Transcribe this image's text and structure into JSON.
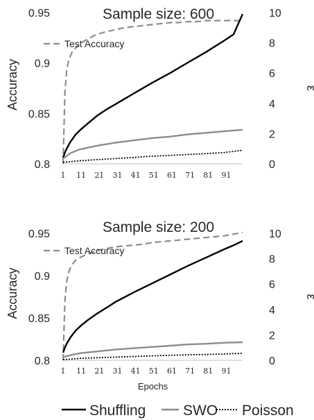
{
  "chart_data": [
    {
      "type": "line",
      "title": "Sample size: 600",
      "xlabel": "",
      "ylabel": "Accuracy",
      "y2label": "ε",
      "x_ticks": [
        1,
        11,
        21,
        31,
        41,
        51,
        61,
        71,
        81,
        91
      ],
      "xlim": [
        1,
        100
      ],
      "ylim": [
        0.8,
        0.95
      ],
      "y_ticks": [
        0.8,
        0.85,
        0.9,
        0.95
      ],
      "y2lim": [
        0,
        10
      ],
      "y2_ticks": [
        0,
        2,
        4,
        6,
        8,
        10
      ],
      "grid": false,
      "annotation": "Test Accuracy",
      "accuracy_series": {
        "name": "Test Accuracy",
        "axis": "left",
        "style": "dashed",
        "color": "#8c8c8c",
        "x": [
          1,
          2,
          3,
          4,
          5,
          6,
          7,
          8,
          10,
          12,
          15,
          18,
          21,
          25,
          30,
          35,
          40,
          45,
          50,
          55,
          60,
          65,
          70,
          75,
          80,
          85,
          90,
          95,
          100
        ],
        "y": [
          0.8,
          0.87,
          0.893,
          0.902,
          0.907,
          0.911,
          0.913,
          0.915,
          0.918,
          0.921,
          0.924,
          0.927,
          0.929,
          0.931,
          0.933,
          0.935,
          0.936,
          0.937,
          0.938,
          0.939,
          0.94,
          0.94,
          0.941,
          0.941,
          0.942,
          0.942,
          0.942,
          0.942,
          0.942
        ]
      },
      "series": [
        {
          "name": "Shuffling",
          "axis": "right",
          "style": "solid",
          "color": "#000000",
          "x": [
            1,
            2,
            3,
            5,
            8,
            11,
            15,
            20,
            25,
            30,
            40,
            50,
            60,
            70,
            80,
            90,
            95,
            100
          ],
          "y": [
            0.4,
            0.75,
            1.0,
            1.45,
            1.95,
            2.3,
            2.7,
            3.2,
            3.6,
            3.95,
            4.65,
            5.35,
            6.0,
            6.7,
            7.4,
            8.15,
            8.55,
            9.9
          ]
        },
        {
          "name": "SWO",
          "axis": "right",
          "style": "solid",
          "color": "#8c8c8c",
          "x": [
            1,
            5,
            10,
            20,
            30,
            40,
            50,
            60,
            70,
            80,
            90,
            100
          ],
          "y": [
            0.35,
            0.7,
            0.95,
            1.2,
            1.4,
            1.55,
            1.7,
            1.8,
            1.95,
            2.05,
            2.15,
            2.25
          ]
        },
        {
          "name": "Poisson",
          "axis": "right",
          "style": "dotted",
          "color": "#000000",
          "x": [
            1,
            10,
            20,
            30,
            40,
            50,
            60,
            70,
            80,
            90,
            100
          ],
          "y": [
            0.1,
            0.2,
            0.28,
            0.35,
            0.42,
            0.5,
            0.56,
            0.62,
            0.68,
            0.75,
            0.9
          ]
        }
      ]
    },
    {
      "type": "line",
      "title": "Sample size: 200",
      "xlabel": "Epochs",
      "ylabel": "Accuracy",
      "y2label": "ε",
      "x_ticks": [
        1,
        11,
        21,
        31,
        41,
        51,
        61,
        71,
        81,
        91
      ],
      "xlim": [
        1,
        100
      ],
      "ylim": [
        0.8,
        0.95
      ],
      "y_ticks": [
        0.8,
        0.85,
        0.9,
        0.95
      ],
      "y2lim": [
        0,
        10
      ],
      "y2_ticks": [
        0,
        2,
        4,
        6,
        8,
        10
      ],
      "grid": false,
      "annotation": "Test Accuracy",
      "accuracy_series": {
        "name": "Test Accuracy",
        "axis": "left",
        "style": "dashed",
        "color": "#8c8c8c",
        "x": [
          1,
          2,
          3,
          4,
          5,
          6,
          7,
          8,
          10,
          12,
          15,
          18,
          21,
          25,
          30,
          35,
          40,
          45,
          50,
          55,
          60,
          65,
          70,
          75,
          80,
          85,
          90,
          95,
          100
        ],
        "y": [
          0.8,
          0.87,
          0.893,
          0.903,
          0.909,
          0.913,
          0.916,
          0.918,
          0.921,
          0.923,
          0.926,
          0.928,
          0.93,
          0.932,
          0.934,
          0.935,
          0.936,
          0.937,
          0.939,
          0.94,
          0.941,
          0.942,
          0.943,
          0.944,
          0.945,
          0.946,
          0.947,
          0.949,
          0.951
        ]
      },
      "series": [
        {
          "name": "Shuffling",
          "axis": "right",
          "style": "solid",
          "color": "#000000",
          "x": [
            1,
            2,
            3,
            5,
            8,
            11,
            15,
            20,
            25,
            30,
            40,
            50,
            60,
            70,
            80,
            90,
            95,
            100
          ],
          "y": [
            0.6,
            1.0,
            1.3,
            1.8,
            2.35,
            2.75,
            3.2,
            3.7,
            4.15,
            4.6,
            5.35,
            6.05,
            6.75,
            7.45,
            8.1,
            8.75,
            9.05,
            9.4
          ]
        },
        {
          "name": "SWO",
          "axis": "right",
          "style": "solid",
          "color": "#8c8c8c",
          "x": [
            1,
            5,
            10,
            20,
            30,
            40,
            50,
            60,
            70,
            80,
            90,
            100
          ],
          "y": [
            0.25,
            0.4,
            0.55,
            0.7,
            0.85,
            0.95,
            1.05,
            1.15,
            1.25,
            1.3,
            1.38,
            1.42
          ]
        },
        {
          "name": "Poisson",
          "axis": "right",
          "style": "dotted",
          "color": "#000000",
          "x": [
            1,
            10,
            20,
            30,
            40,
            50,
            60,
            70,
            80,
            90,
            100
          ],
          "y": [
            0.05,
            0.15,
            0.2,
            0.25,
            0.3,
            0.35,
            0.4,
            0.43,
            0.46,
            0.5,
            0.55
          ]
        }
      ]
    }
  ],
  "legend": {
    "placement": "bottom",
    "items": [
      {
        "name": "Shuffling",
        "style": "solid",
        "color": "#000000"
      },
      {
        "name": "SWO",
        "style": "solid",
        "color": "#8c8c8c"
      },
      {
        "name": "Poisson",
        "style": "dotted",
        "color": "#000000"
      }
    ]
  }
}
